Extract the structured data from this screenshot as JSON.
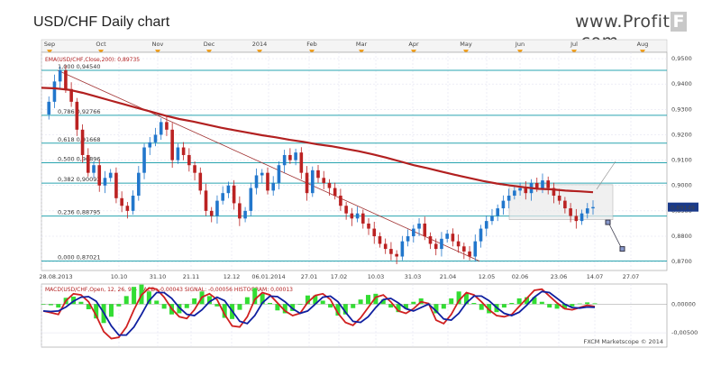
{
  "title": "USD/CHF Daily chart",
  "brand": {
    "prefix": "www.Profit",
    "letter": "F",
    "suffix": ".com"
  },
  "colors": {
    "bull": "#2277cc",
    "bear": "#bb2222",
    "ema": "#b22020",
    "fib": "#2aa5b0",
    "macd": "#d02020",
    "signal": "#1020a0",
    "hist": "#33dd33"
  },
  "chart_data": [
    {
      "type": "candlestick",
      "title": "USD/CHF Daily chart",
      "indicator_label": "EMA(USD/CHF,Close,200): 0,89735",
      "last_price_label": "0,89149",
      "months": [
        "Sep",
        "Oct",
        "Nov",
        "Dec",
        "2014",
        "Feb",
        "Mar",
        "Apr",
        "May",
        "Jun",
        "Jul",
        "Aug"
      ],
      "x_ticks": [
        "28.08.2013",
        "10.10",
        "31.10",
        "21.11",
        "12.12",
        "06.01.2014",
        "27.01",
        "17.02",
        "10.03",
        "31.03",
        "21.04",
        "12.05",
        "02.06",
        "23.06",
        "14.07",
        "27.07"
      ],
      "y_ticks": [
        "0,9500",
        "0,9400",
        "0,9300",
        "0,9200",
        "0,9100",
        "0,9000",
        "0,8900",
        "0,8800",
        "0,8700"
      ],
      "ylim": [
        0.8665,
        0.9525
      ],
      "fib_levels": [
        {
          "ratio": "1,000",
          "price": 0.9454,
          "label": "1,000 0,94540"
        },
        {
          "ratio": "0,786",
          "price": 0.92766,
          "label": "0,786 0,92766"
        },
        {
          "ratio": "0,618",
          "price": 0.91668,
          "label": "0,618 0,91668"
        },
        {
          "ratio": "0,500",
          "price": 0.90896,
          "label": "0,500 0,90896"
        },
        {
          "ratio": "0,382",
          "price": 0.90093,
          "label": "0,382 0,90093"
        },
        {
          "ratio": "0,236",
          "price": 0.88795,
          "label": "0,236 0,88795"
        },
        {
          "ratio": "0,000",
          "price": 0.87021,
          "label": "0,000 0,87021"
        }
      ],
      "price_path": [
        0.928,
        0.933,
        0.941,
        0.9454,
        0.938,
        0.933,
        0.922,
        0.912,
        0.905,
        0.908,
        0.9,
        0.903,
        0.905,
        0.895,
        0.892,
        0.89,
        0.896,
        0.905,
        0.915,
        0.917,
        0.92,
        0.925,
        0.922,
        0.91,
        0.915,
        0.912,
        0.908,
        0.905,
        0.898,
        0.89,
        0.888,
        0.894,
        0.897,
        0.9,
        0.893,
        0.887,
        0.89,
        0.899,
        0.904,
        0.905,
        0.898,
        0.901,
        0.908,
        0.912,
        0.91,
        0.913,
        0.905,
        0.897,
        0.906,
        0.903,
        0.901,
        0.899,
        0.896,
        0.892,
        0.889,
        0.887,
        0.889,
        0.885,
        0.883,
        0.88,
        0.877,
        0.875,
        0.873,
        0.872,
        0.878,
        0.88,
        0.883,
        0.885,
        0.88,
        0.877,
        0.875,
        0.879,
        0.881,
        0.878,
        0.876,
        0.874,
        0.872,
        0.878,
        0.883,
        0.886,
        0.888,
        0.891,
        0.894,
        0.896,
        0.898,
        0.899,
        0.897,
        0.901,
        0.899,
        0.902,
        0.899,
        0.896,
        0.894,
        0.891,
        0.888,
        0.886,
        0.889,
        0.891,
        0.89149
      ],
      "ema200": [
        0.9385,
        0.9383,
        0.9377,
        0.9365,
        0.935,
        0.9335,
        0.932,
        0.9305,
        0.929,
        0.9275,
        0.9262,
        0.9252,
        0.924,
        0.9228,
        0.9218,
        0.9208,
        0.9198,
        0.919,
        0.918,
        0.9172,
        0.9162,
        0.9155,
        0.9145,
        0.9135,
        0.9123,
        0.911,
        0.9095,
        0.908,
        0.9068,
        0.9055,
        0.9042,
        0.903,
        0.9018,
        0.9008,
        0.9,
        0.8993,
        0.8987,
        0.8985,
        0.898,
        0.8977,
        0.89735
      ]
    },
    {
      "type": "line",
      "label": "MACD(USD/CHF,Open, 12, 26, 9) - MACD: -0,00043 SIGNAL: -0,00056 HISTOGRAM: 0,00013",
      "y_ticks": [
        "0,00000",
        "-0,00500"
      ],
      "ylim": [
        -0.0075,
        0.0035
      ],
      "series": [
        {
          "name": "MACD",
          "values": [
            -0.0012,
            -0.0015,
            -0.0018,
            0.0006,
            0.0018,
            0.0016,
            0.0004,
            -0.002,
            -0.0048,
            -0.006,
            -0.0058,
            -0.004,
            -0.001,
            0.0016,
            0.0028,
            0.0026,
            0.0012,
            -0.0008,
            -0.0022,
            -0.0025,
            -0.001,
            0.0012,
            0.0018,
            0.0008,
            -0.0018,
            -0.0038,
            -0.004,
            -0.0022,
            0.0008,
            0.002,
            0.0016,
            0.0002,
            -0.0012,
            -0.002,
            -0.0016,
            0.0003,
            0.0015,
            0.0018,
            0.0008,
            -0.0016,
            -0.0032,
            -0.0037,
            -0.0024,
            -0.0006,
            0.0012,
            0.0016,
            0.0004,
            -0.0012,
            -0.0016,
            -0.0008,
            0.0004,
            0.0001,
            -0.0028,
            -0.0034,
            -0.0018,
            0.0006,
            0.002,
            0.0016,
            0.0004,
            -0.001,
            -0.002,
            -0.0022,
            -0.0018,
            -0.0004,
            0.001,
            0.0024,
            0.0026,
            0.0014,
            0.0002,
            -0.0008,
            -0.001,
            -0.0006,
            -0.0002,
            -0.00043
          ]
        },
        {
          "name": "SIGNAL",
          "values": [
            -0.0012,
            -0.0013,
            -0.0012,
            -0.0005,
            0.0005,
            0.0012,
            0.0013,
            0.0005,
            -0.0015,
            -0.0038,
            -0.0054,
            -0.0054,
            -0.004,
            -0.0018,
            0.0006,
            0.002,
            0.002,
            0.001,
            -0.0006,
            -0.0018,
            -0.002,
            -0.001,
            0.0004,
            0.0012,
            0.0006,
            -0.0012,
            -0.003,
            -0.0034,
            -0.002,
            0.0002,
            0.0014,
            0.0013,
            0.0004,
            -0.0008,
            -0.0016,
            -0.0012,
            0.0,
            0.0012,
            0.0014,
            0.0004,
            -0.0014,
            -0.003,
            -0.0032,
            -0.0022,
            -0.0006,
            0.0008,
            0.001,
            0.0002,
            -0.0008,
            -0.0012,
            -0.0006,
            0.0,
            -0.0012,
            -0.0026,
            -0.0028,
            -0.0016,
            0.0002,
            0.0014,
            0.0014,
            0.0006,
            -0.0006,
            -0.0016,
            -0.002,
            -0.0014,
            -0.0002,
            0.0012,
            0.0022,
            0.002,
            0.001,
            0.0,
            -0.0006,
            -0.0007,
            -0.0005,
            -0.00056
          ]
        },
        {
          "name": "HISTOGRAM",
          "values": [
            0.0,
            -0.0002,
            -0.0006,
            0.0011,
            0.0013,
            0.0004,
            -0.0009,
            -0.0025,
            -0.0033,
            -0.0022,
            -0.0004,
            0.0014,
            0.003,
            0.0034,
            0.0022,
            0.0006,
            -0.0008,
            -0.0018,
            -0.0016,
            -0.0007,
            0.001,
            0.0022,
            0.0014,
            -0.0004,
            -0.0024,
            -0.0026,
            -0.001,
            0.0012,
            0.0028,
            0.0018,
            0.0002,
            -0.0011,
            -0.0016,
            -0.0012,
            0.0,
            0.0015,
            0.0015,
            0.0006,
            -0.0006,
            -0.002,
            -0.0018,
            -0.0007,
            0.0008,
            0.0016,
            0.0018,
            0.0008,
            -0.0006,
            -0.0014,
            -0.0008,
            0.0004,
            0.001,
            0.0001,
            -0.0016,
            -0.0008,
            0.001,
            0.0022,
            0.0018,
            0.0002,
            -0.001,
            -0.0016,
            -0.0014,
            -0.0006,
            0.0002,
            0.001,
            0.0012,
            0.0012,
            0.0004,
            -0.0006,
            -0.0008,
            -0.0008,
            -0.0004,
            0.0001,
            0.0003,
            0.00013
          ]
        }
      ]
    }
  ],
  "watermark": "FXCM Marketscope © 2014"
}
